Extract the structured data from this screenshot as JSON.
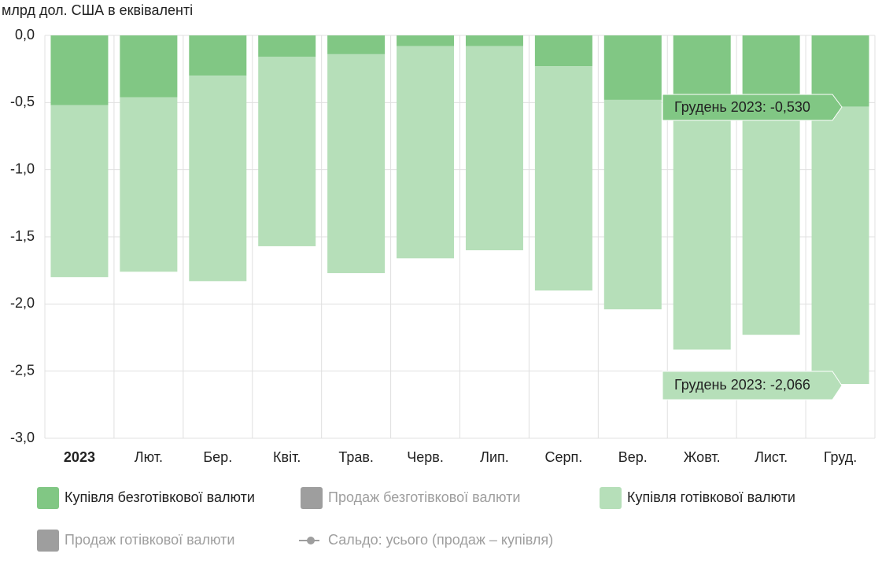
{
  "chart_data": {
    "type": "stacked-bar",
    "y_unit_label": "млрд дол. США в еквіваленті",
    "categories": [
      "2023",
      "Лют.",
      "Бер.",
      "Квіт.",
      "Трав.",
      "Черв.",
      "Лип.",
      "Серп.",
      "Вер.",
      "Жовт.",
      "Лист.",
      "Груд."
    ],
    "series": [
      {
        "name": "Купівля безготівкової валюти",
        "color": "#81c784",
        "values": [
          -0.52,
          -0.46,
          -0.3,
          -0.16,
          -0.14,
          -0.08,
          -0.08,
          -0.23,
          -0.48,
          -0.55,
          -0.55,
          -0.53
        ]
      },
      {
        "name": "Купівля готівкової валюти",
        "color": "#b6dfb9",
        "values": [
          -1.28,
          -1.3,
          -1.53,
          -1.41,
          -1.63,
          -1.58,
          -1.52,
          -1.67,
          -1.56,
          -1.79,
          -1.68,
          -2.066
        ]
      }
    ],
    "hidden_legend": [
      {
        "name": "Продаж безготівкової валюти",
        "color": "#9e9e9e"
      },
      {
        "name": "Продаж готівкової валюти",
        "color": "#9e9e9e"
      },
      {
        "name": "Сальдо: усього (продаж – купівля)",
        "color": "#9e9e9e"
      }
    ],
    "annotations": [
      "Грудень 2023: -0,530",
      "Грудень 2023: -2,066"
    ],
    "ylim": [
      -3,
      0
    ],
    "yticks": [
      {
        "value": 0,
        "label": "0,0"
      },
      {
        "value": -0.5,
        "label": "-0,5"
      },
      {
        "value": -1,
        "label": "-1,0"
      },
      {
        "value": -1.5,
        "label": "-1,5"
      },
      {
        "value": -2,
        "label": "-2,0"
      },
      {
        "value": -2.5,
        "label": "-2,5"
      },
      {
        "value": -3,
        "label": "-3,0"
      }
    ],
    "grid": true
  }
}
